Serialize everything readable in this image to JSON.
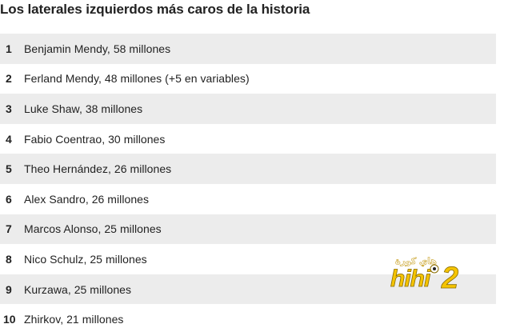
{
  "title": "Los laterales izquierdos más caros de la historia",
  "rows": [
    {
      "rank": "1",
      "text": "Benjamin Mendy, 58 millones"
    },
    {
      "rank": "2",
      "text": "Ferland Mendy, 48 millones (+5 en variables)"
    },
    {
      "rank": "3",
      "text": "Luke Shaw, 38 millones"
    },
    {
      "rank": "4",
      "text": "Fabio Coentrao, 30 millones"
    },
    {
      "rank": "5",
      "text": "Theo Hernández, 26 millones"
    },
    {
      "rank": "6",
      "text": "Alex Sandro, 26 millones"
    },
    {
      "rank": "7",
      "text": "Marcos Alonso, 25 millones"
    },
    {
      "rank": "8",
      "text": "Nico Schulz, 25 millones"
    },
    {
      "rank": "9",
      "text": "Kurzawa, 25 millones"
    },
    {
      "rank": "10",
      "text": "Zhirkov, 21 millones"
    }
  ],
  "colors": {
    "shaded_row": "#ececec",
    "text": "#222222",
    "watermark_yellow": "#f5c400",
    "watermark_gold": "#c9a227"
  },
  "watermark": {
    "icon": "hihi2-logo-icon",
    "brand_text": "hihi2",
    "arabic_text": "هاي كورة"
  }
}
